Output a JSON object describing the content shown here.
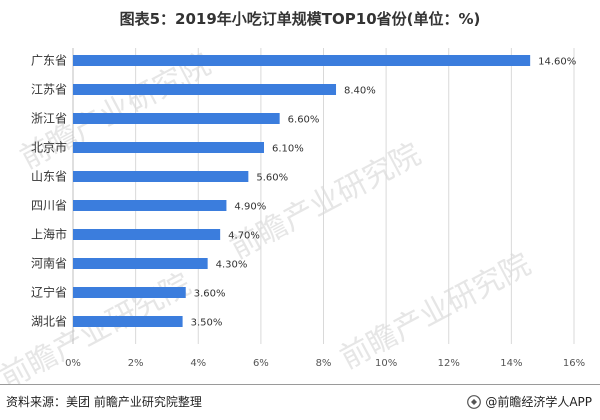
{
  "title": "图表5：2019年小吃订单规模TOP10省份(单位：%)",
  "footer": {
    "source": "资料来源：美团 前瞻产业研究院整理",
    "brand": "@前瞻经济学人APP"
  },
  "watermark": "前瞻产业研究院",
  "colors": {
    "bar": "#3b7ddd",
    "grid": "#d9d9d9",
    "axis": "#bfbfbf",
    "text": "#333333"
  },
  "chart_data": {
    "type": "bar",
    "orientation": "horizontal",
    "categories": [
      "广东省",
      "江苏省",
      "浙江省",
      "北京市",
      "山东省",
      "四川省",
      "上海市",
      "河南省",
      "辽宁省",
      "湖北省"
    ],
    "values": [
      14.6,
      8.4,
      6.6,
      6.1,
      5.6,
      4.9,
      4.7,
      4.3,
      3.6,
      3.5
    ],
    "data_labels": [
      "14.60%",
      "8.40%",
      "6.60%",
      "6.10%",
      "5.60%",
      "4.90%",
      "4.70%",
      "4.30%",
      "3.60%",
      "3.50%"
    ],
    "xlim": [
      0,
      16
    ],
    "xticks": [
      0,
      2,
      4,
      6,
      8,
      10,
      12,
      14,
      16
    ],
    "xtick_labels": [
      "0%",
      "2%",
      "4%",
      "6%",
      "8%",
      "10%",
      "12%",
      "14%",
      "16%"
    ],
    "grid": true,
    "xlabel": "",
    "ylabel": ""
  }
}
